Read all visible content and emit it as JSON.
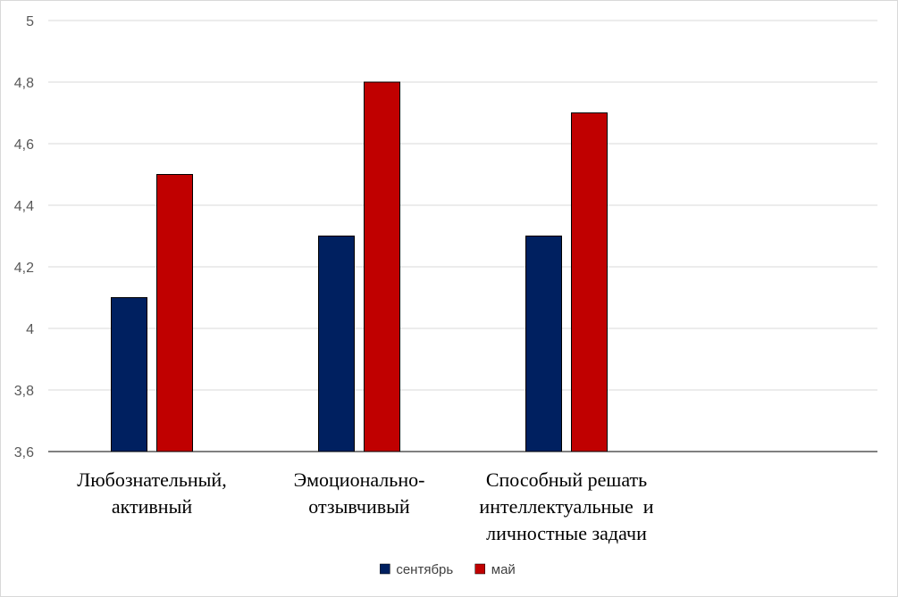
{
  "chart_data": {
    "type": "bar",
    "title": "",
    "xlabel": "",
    "ylabel": "",
    "ylim": [
      3.6,
      5
    ],
    "yticks": [
      "3,6",
      "3,8",
      "4",
      "4,2",
      "4,4",
      "4,6",
      "4,8",
      "5"
    ],
    "category_label_lines": [
      [
        "Любознательный,",
        "активный"
      ],
      [
        "Эмоционально-",
        "отзывчивый"
      ],
      [
        "Способный решать",
        "интеллектуальные  и",
        "личностные задачи"
      ],
      []
    ],
    "categories": [
      "Любознательный, активный",
      "Эмоционально- отзывчивый",
      "Способный решать интеллектуальные  и личностные задачи",
      ""
    ],
    "series": [
      {
        "name": "сентябрь",
        "color": "#002060",
        "values": [
          4.1,
          4.3,
          4.3,
          null
        ]
      },
      {
        "name": "май",
        "color": "#C00000",
        "values": [
          4.5,
          4.8,
          4.7,
          null
        ]
      }
    ],
    "grid": true,
    "legend_position": "bottom"
  }
}
